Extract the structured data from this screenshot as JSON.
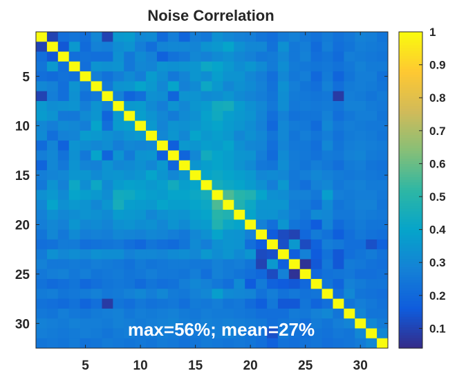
{
  "chart_data": {
    "type": "heatmap",
    "title": "Noise Correlation",
    "annotation": "max=56%; mean=27%",
    "rows": 32,
    "cols": 32,
    "symmetric": true,
    "colormap": "parula",
    "clim": [
      0.04,
      1
    ],
    "x_ticks": [
      5,
      10,
      15,
      20,
      25,
      30
    ],
    "y_ticks": [
      5,
      10,
      15,
      20,
      25,
      30
    ],
    "colorbar_ticks": [
      0.1,
      0.2,
      0.3,
      0.4,
      0.5,
      0.6,
      0.7,
      0.8,
      0.9,
      1
    ],
    "colorbar_tick_labels": [
      "0.1",
      "0.2",
      "0.3",
      "0.4",
      "0.5",
      "0.6",
      "0.7",
      "0.8",
      "0.9",
      "1"
    ],
    "lower_triangle": [
      [
        1
      ],
      [
        0.1,
        1
      ],
      [
        0.22,
        0.15,
        1
      ],
      [
        0.24,
        0.36,
        0.22,
        1
      ],
      [
        0.22,
        0.21,
        0.23,
        0.22,
        1
      ],
      [
        0.3,
        0.28,
        0.22,
        0.34,
        0.27,
        1
      ],
      [
        0.1,
        0.27,
        0.22,
        0.33,
        0.23,
        0.25,
        1
      ],
      [
        0.36,
        0.32,
        0.33,
        0.34,
        0.27,
        0.34,
        0.28,
        1
      ],
      [
        0.37,
        0.34,
        0.25,
        0.25,
        0.31,
        0.35,
        0.19,
        0.36,
        1
      ],
      [
        0.3,
        0.27,
        0.31,
        0.3,
        0.27,
        0.4,
        0.22,
        0.37,
        0.38,
        1
      ],
      [
        0.31,
        0.22,
        0.28,
        0.29,
        0.37,
        0.36,
        0.33,
        0.31,
        0.34,
        0.36,
        1
      ],
      [
        0.21,
        0.29,
        0.18,
        0.34,
        0.32,
        0.3,
        0.32,
        0.27,
        0.3,
        0.29,
        0.3,
        1
      ],
      [
        0.27,
        0.3,
        0.23,
        0.33,
        0.25,
        0.4,
        0.19,
        0.34,
        0.26,
        0.34,
        0.35,
        0.17,
        1
      ],
      [
        0.19,
        0.3,
        0.25,
        0.34,
        0.29,
        0.28,
        0.34,
        0.3,
        0.31,
        0.33,
        0.3,
        0.36,
        0.19,
        1
      ],
      [
        0.27,
        0.29,
        0.3,
        0.35,
        0.35,
        0.31,
        0.34,
        0.35,
        0.33,
        0.35,
        0.4,
        0.35,
        0.3,
        0.35,
        1
      ],
      [
        0.25,
        0.34,
        0.28,
        0.42,
        0.32,
        0.42,
        0.31,
        0.37,
        0.39,
        0.38,
        0.36,
        0.38,
        0.44,
        0.38,
        0.4,
        1
      ],
      [
        0.33,
        0.36,
        0.31,
        0.4,
        0.38,
        0.36,
        0.32,
        0.44,
        0.43,
        0.4,
        0.38,
        0.37,
        0.4,
        0.4,
        0.42,
        0.45,
        1
      ],
      [
        0.3,
        0.4,
        0.33,
        0.36,
        0.34,
        0.3,
        0.35,
        0.45,
        0.38,
        0.37,
        0.36,
        0.4,
        0.38,
        0.38,
        0.4,
        0.42,
        0.56,
        1
      ],
      [
        0.28,
        0.33,
        0.3,
        0.32,
        0.34,
        0.33,
        0.31,
        0.37,
        0.36,
        0.35,
        0.3,
        0.33,
        0.35,
        0.34,
        0.38,
        0.4,
        0.5,
        0.48,
        1
      ],
      [
        0.27,
        0.3,
        0.28,
        0.35,
        0.3,
        0.31,
        0.29,
        0.33,
        0.34,
        0.32,
        0.33,
        0.3,
        0.34,
        0.31,
        0.36,
        0.37,
        0.48,
        0.42,
        0.4,
        1
      ],
      [
        0.24,
        0.3,
        0.25,
        0.31,
        0.27,
        0.28,
        0.27,
        0.3,
        0.29,
        0.28,
        0.3,
        0.29,
        0.27,
        0.25,
        0.3,
        0.33,
        0.4,
        0.35,
        0.34,
        0.28,
        1
      ],
      [
        0.22,
        0.23,
        0.26,
        0.26,
        0.22,
        0.23,
        0.24,
        0.25,
        0.22,
        0.2,
        0.24,
        0.22,
        0.21,
        0.24,
        0.31,
        0.27,
        0.33,
        0.35,
        0.34,
        0.22,
        0.16,
        1
      ],
      [
        0.26,
        0.33,
        0.3,
        0.32,
        0.3,
        0.33,
        0.32,
        0.32,
        0.28,
        0.3,
        0.3,
        0.29,
        0.31,
        0.32,
        0.3,
        0.36,
        0.32,
        0.35,
        0.31,
        0.35,
        0.12,
        0.13,
        1
      ],
      [
        0.28,
        0.25,
        0.25,
        0.26,
        0.25,
        0.27,
        0.26,
        0.25,
        0.23,
        0.26,
        0.24,
        0.25,
        0.26,
        0.26,
        0.25,
        0.25,
        0.28,
        0.26,
        0.27,
        0.24,
        0.1,
        0.36,
        0.17,
        1
      ],
      [
        0.25,
        0.27,
        0.28,
        0.25,
        0.27,
        0.24,
        0.25,
        0.26,
        0.24,
        0.25,
        0.27,
        0.25,
        0.25,
        0.24,
        0.27,
        0.22,
        0.28,
        0.26,
        0.24,
        0.22,
        0.2,
        0.12,
        0.28,
        0.06,
        1
      ],
      [
        0.23,
        0.21,
        0.22,
        0.24,
        0.2,
        0.22,
        0.24,
        0.25,
        0.24,
        0.21,
        0.24,
        0.22,
        0.23,
        0.27,
        0.3,
        0.28,
        0.25,
        0.22,
        0.31,
        0.16,
        0.26,
        0.18,
        0.16,
        0.15,
        0.2,
        1
      ],
      [
        0.26,
        0.27,
        0.24,
        0.25,
        0.26,
        0.28,
        0.25,
        0.26,
        0.28,
        0.3,
        0.27,
        0.3,
        0.26,
        0.25,
        0.28,
        0.3,
        0.38,
        0.31,
        0.3,
        0.29,
        0.23,
        0.27,
        0.23,
        0.25,
        0.23,
        0.24,
        1
      ],
      [
        0.23,
        0.22,
        0.21,
        0.23,
        0.19,
        0.22,
        0.08,
        0.24,
        0.22,
        0.25,
        0.23,
        0.24,
        0.25,
        0.22,
        0.26,
        0.25,
        0.27,
        0.24,
        0.25,
        0.21,
        0.17,
        0.25,
        0.15,
        0.15,
        0.24,
        0.19,
        0.22,
        1
      ],
      [
        0.25,
        0.24,
        0.27,
        0.25,
        0.24,
        0.26,
        0.27,
        0.28,
        0.25,
        0.27,
        0.26,
        0.27,
        0.28,
        0.26,
        0.25,
        0.27,
        0.26,
        0.26,
        0.25,
        0.24,
        0.22,
        0.22,
        0.22,
        0.26,
        0.25,
        0.28,
        0.3,
        0.24,
        1
      ],
      [
        0.28,
        0.27,
        0.26,
        0.28,
        0.27,
        0.27,
        0.26,
        0.28,
        0.27,
        0.26,
        0.27,
        0.28,
        0.29,
        0.27,
        0.26,
        0.28,
        0.27,
        0.28,
        0.27,
        0.26,
        0.25,
        0.22,
        0.24,
        0.25,
        0.22,
        0.26,
        0.24,
        0.27,
        0.29,
        1
      ],
      [
        0.27,
        0.26,
        0.25,
        0.26,
        0.27,
        0.26,
        0.24,
        0.26,
        0.27,
        0.25,
        0.26,
        0.27,
        0.26,
        0.24,
        0.25,
        0.26,
        0.27,
        0.28,
        0.26,
        0.24,
        0.23,
        0.13,
        0.26,
        0.23,
        0.22,
        0.24,
        0.23,
        0.25,
        0.24,
        0.3,
        1
      ],
      [
        0.24,
        0.25,
        0.24,
        0.26,
        0.23,
        0.24,
        0.26,
        0.25,
        0.24,
        0.25,
        0.24,
        0.26,
        0.25,
        0.23,
        0.24,
        0.26,
        0.25,
        0.24,
        0.25,
        0.24,
        0.22,
        0.18,
        0.23,
        0.22,
        0.23,
        0.24,
        0.22,
        0.23,
        0.24,
        0.26,
        0.3,
        1
      ]
    ]
  }
}
